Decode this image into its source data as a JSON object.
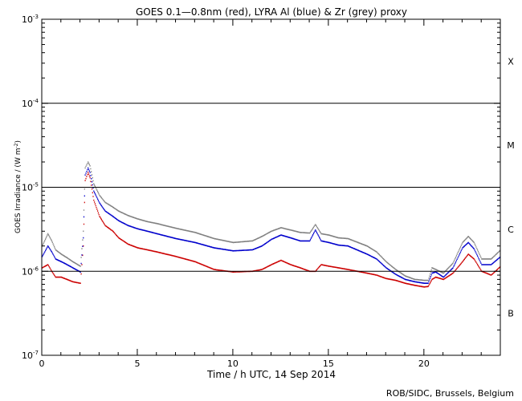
{
  "chart_data": {
    "type": "scatter",
    "title": "GOES 0.1—0.8nm (red), LYRA Al (blue) & Zr (grey) proxy",
    "xlabel": "Time / h UTC, 14 Sep 2014",
    "ylabel": "GOES Irradiance / (W m",
    "ylabel_sup": "-2",
    "ylabel_close": ")",
    "xlim": [
      0,
      24
    ],
    "ylim": [
      1e-07,
      0.001
    ],
    "yscale": "log",
    "x_ticks": [
      {
        "value": 0,
        "label": "0"
      },
      {
        "value": 5,
        "label": "5"
      },
      {
        "value": 10,
        "label": "10"
      },
      {
        "value": 15,
        "label": "15"
      },
      {
        "value": 20,
        "label": "20"
      }
    ],
    "y_ticks": [
      {
        "value": 1e-07,
        "base": "10",
        "exp": "-7"
      },
      {
        "value": 1e-06,
        "base": "10",
        "exp": "-6"
      },
      {
        "value": 1e-05,
        "base": "10",
        "exp": "-5"
      },
      {
        "value": 0.0001,
        "base": "10",
        "exp": "-4"
      },
      {
        "value": 0.001,
        "base": "10",
        "exp": "-3"
      }
    ],
    "flare_class_lines": [
      1e-06,
      1e-05,
      0.0001
    ],
    "flare_classes": [
      {
        "label": "X",
        "value": 0.000316
      },
      {
        "label": "M",
        "value": 3.16e-05
      },
      {
        "label": "C",
        "value": 3.16e-06
      },
      {
        "label": "B",
        "value": 3.16e-07
      }
    ],
    "colors": {
      "GOES": "#cc0000",
      "LYRA Al": "#0000cc",
      "LYRA Zr": "#808080"
    },
    "series": [
      {
        "color": "#cc0000",
        "x": [
          0.0,
          0.3,
          0.5,
          0.7,
          1.0,
          1.3,
          1.6,
          2.0,
          2.15,
          2.25,
          2.4,
          2.5,
          2.7,
          3.0,
          3.3,
          3.7,
          4.0,
          4.5,
          5.0,
          5.5,
          6.0,
          7.0,
          8.0,
          9.0,
          10.0,
          11.0,
          11.5,
          12.0,
          12.5,
          13.0,
          13.5,
          14.0,
          14.3,
          14.6,
          15.0,
          15.5,
          16.0,
          17.0,
          17.5,
          18.0,
          18.5,
          19.0,
          19.5,
          20.0,
          20.2,
          20.4,
          20.6,
          21.0,
          21.5,
          22.0,
          22.3,
          22.6,
          23.0,
          23.5,
          24.0
        ],
        "y": [
          1.1e-06,
          1.2e-06,
          1e-06,
          8.5e-07,
          8.5e-07,
          8e-07,
          7.5e-07,
          7.2e-07,
          2e-06,
          1.2e-05,
          1.5e-05,
          1.3e-05,
          7e-06,
          4.5e-06,
          3.5e-06,
          3e-06,
          2.5e-06,
          2.1e-06,
          1.9e-06,
          1.8e-06,
          1.7e-06,
          1.5e-06,
          1.3e-06,
          1.05e-06,
          9.8e-07,
          1e-06,
          1.05e-06,
          1.2e-06,
          1.35e-06,
          1.2e-06,
          1.1e-06,
          1e-06,
          1e-06,
          1.2e-06,
          1.15e-06,
          1.1e-06,
          1.05e-06,
          9.5e-07,
          9e-07,
          8.2e-07,
          7.8e-07,
          7.2e-07,
          6.8e-07,
          6.5e-07,
          6.6e-07,
          8e-07,
          8.5e-07,
          8e-07,
          9.5e-07,
          1.3e-06,
          1.6e-06,
          1.4e-06,
          1e-06,
          9e-07,
          1.15e-06
        ]
      },
      {
        "color": "#0000cc",
        "x": [
          0.0,
          0.3,
          0.5,
          0.7,
          1.0,
          1.3,
          1.6,
          2.0,
          2.15,
          2.25,
          2.4,
          2.5,
          2.7,
          3.0,
          3.3,
          3.7,
          4.0,
          4.5,
          5.0,
          5.5,
          6.0,
          7.0,
          8.0,
          9.0,
          10.0,
          11.0,
          11.5,
          12.0,
          12.5,
          13.0,
          13.5,
          14.0,
          14.3,
          14.6,
          15.0,
          15.5,
          16.0,
          17.0,
          17.5,
          18.0,
          18.5,
          19.0,
          19.5,
          20.0,
          20.2,
          20.4,
          20.6,
          21.0,
          21.5,
          22.0,
          22.3,
          22.6,
          23.0,
          23.5,
          24.0
        ],
        "y": [
          1.5e-06,
          2e-06,
          1.7e-06,
          1.4e-06,
          1.3e-06,
          1.2e-06,
          1.1e-06,
          9.8e-07,
          2.5e-06,
          1.4e-05,
          1.7e-05,
          1.5e-05,
          9e-06,
          6.5e-06,
          5.2e-06,
          4.5e-06,
          4e-06,
          3.5e-06,
          3.2e-06,
          3e-06,
          2.8e-06,
          2.45e-06,
          2.2e-06,
          1.9e-06,
          1.75e-06,
          1.8e-06,
          2e-06,
          2.4e-06,
          2.7e-06,
          2.5e-06,
          2.3e-06,
          2.3e-06,
          3.1e-06,
          2.3e-06,
          2.2e-06,
          2.05e-06,
          2e-06,
          1.6e-06,
          1.4e-06,
          1.1e-06,
          9.2e-07,
          8e-07,
          7.5e-07,
          7.2e-07,
          7.2e-07,
          9.5e-07,
          9.8e-07,
          8.5e-07,
          1.1e-06,
          1.9e-06,
          2.2e-06,
          1.85e-06,
          1.2e-06,
          1.2e-06,
          1.5e-06
        ]
      },
      {
        "color": "#808080",
        "x": [
          0.0,
          0.3,
          0.5,
          0.7,
          1.0,
          1.3,
          1.6,
          2.0,
          2.15,
          2.25,
          2.4,
          2.5,
          2.7,
          3.0,
          3.3,
          3.7,
          4.0,
          4.5,
          5.0,
          5.5,
          6.0,
          7.0,
          8.0,
          9.0,
          10.0,
          11.0,
          11.5,
          12.0,
          12.5,
          13.0,
          13.5,
          14.0,
          14.3,
          14.6,
          15.0,
          15.5,
          16.0,
          17.0,
          17.5,
          18.0,
          18.5,
          19.0,
          19.5,
          20.0,
          20.2,
          20.4,
          20.6,
          21.0,
          21.5,
          22.0,
          22.3,
          22.6,
          23.0,
          23.5,
          24.0
        ],
        "y": [
          2e-06,
          2.8e-06,
          2.3e-06,
          1.8e-06,
          1.6e-06,
          1.45e-06,
          1.3e-06,
          1.15e-06,
          3e-06,
          1.7e-05,
          2e-05,
          1.8e-05,
          1.1e-05,
          8e-06,
          6.6e-06,
          5.8e-06,
          5.2e-06,
          4.6e-06,
          4.2e-06,
          3.9e-06,
          3.7e-06,
          3.25e-06,
          2.9e-06,
          2.45e-06,
          2.2e-06,
          2.3e-06,
          2.6e-06,
          3e-06,
          3.3e-06,
          3.1e-06,
          2.9e-06,
          2.85e-06,
          3.6e-06,
          2.8e-06,
          2.7e-06,
          2.5e-06,
          2.45e-06,
          2e-06,
          1.7e-06,
          1.3e-06,
          1.05e-06,
          8.8e-07,
          8e-07,
          7.8e-07,
          7.8e-07,
          1.1e-06,
          1.05e-06,
          9.5e-07,
          1.25e-06,
          2.2e-06,
          2.6e-06,
          2.2e-06,
          1.4e-06,
          1.4e-06,
          1.8e-06
        ]
      }
    ]
  },
  "credit": "ROB/SIDC, Brussels, Belgium"
}
